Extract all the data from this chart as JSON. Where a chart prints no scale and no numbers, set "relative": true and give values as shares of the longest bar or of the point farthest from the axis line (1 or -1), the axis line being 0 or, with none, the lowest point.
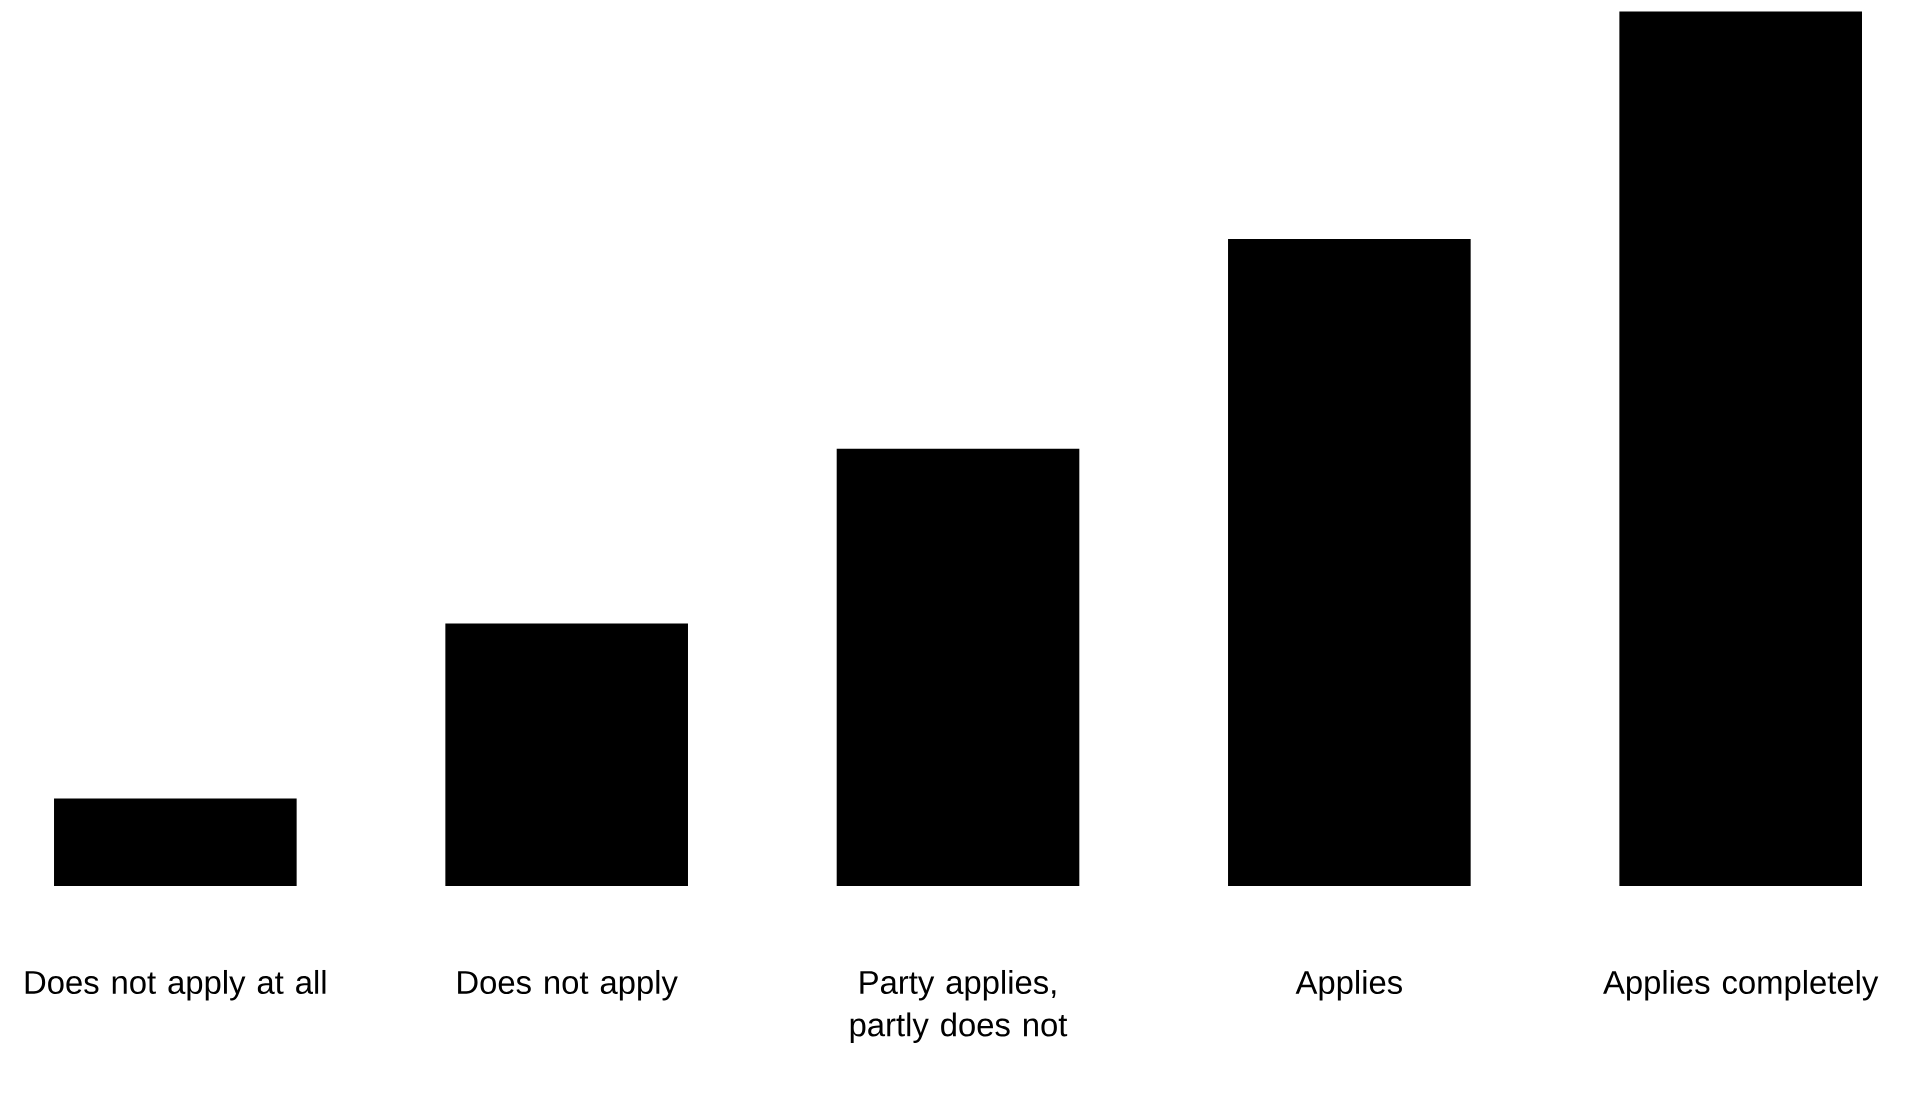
{
  "chart_data": {
    "type": "bar",
    "relative": true,
    "color": "#000000",
    "categories": [
      "Does not apply at all",
      "Does not apply",
      "Party applies, partly does not",
      "Applies",
      "Applies completely"
    ],
    "values": [
      0.1,
      0.3,
      0.5,
      0.74,
      1
    ]
  }
}
